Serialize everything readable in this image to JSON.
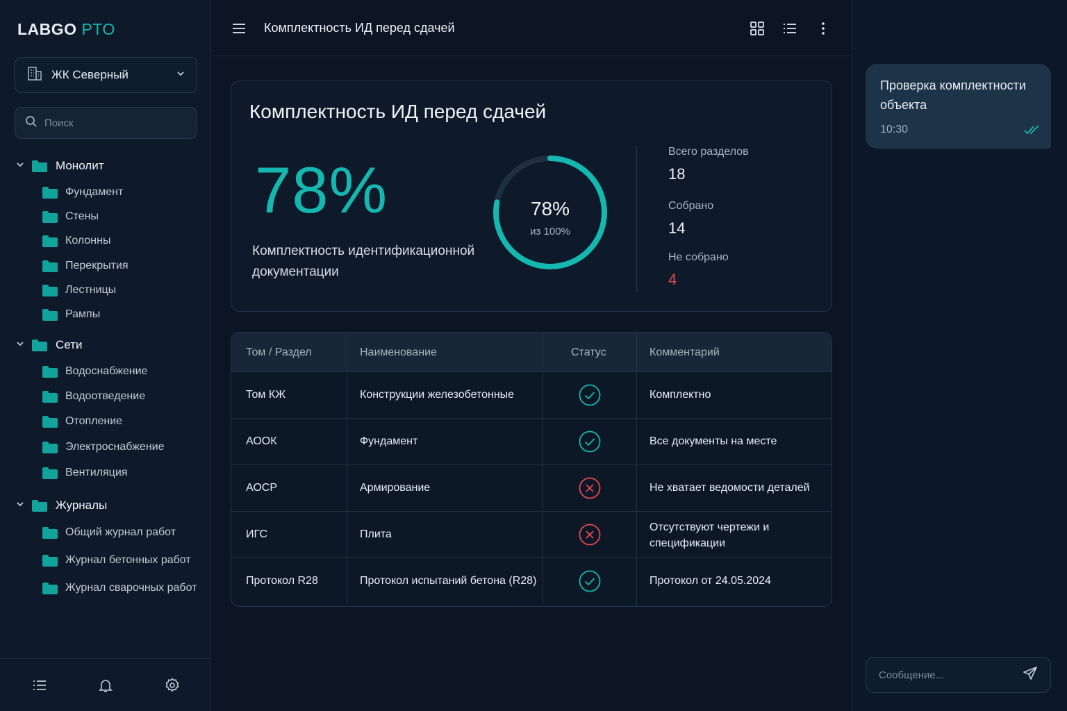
{
  "app": {
    "logo_main": "LABGO",
    "logo_accent": "PTO",
    "accent_color": "#14b8b0",
    "error_color": "#e5484d"
  },
  "sidebar": {
    "project": "ЖК Северный",
    "search_placeholder": "Поиск",
    "groups": [
      {
        "label": "Монолит",
        "items": [
          "Фундамент",
          "Стены",
          "Колонны",
          "Перекрытия",
          "Лестницы",
          "Рампы"
        ]
      },
      {
        "label": "Сети",
        "items": [
          "Водоснабжение",
          "Водоотведение",
          "Отопление",
          "Электроснабжение",
          "Вентиляция"
        ]
      },
      {
        "label": "Журналы",
        "items": [
          "Общий журнал работ",
          "Журнал бетонных работ",
          "Журнал сварочных работ"
        ]
      }
    ],
    "bottom_icons": [
      "list-icon",
      "bell-icon",
      "gear-icon"
    ]
  },
  "header": {
    "title": "Комплектность ИД перед сдачей",
    "icons": [
      "menu-icon",
      "grid-view-icon",
      "list-view-icon",
      "more-icon"
    ]
  },
  "kpi": {
    "title": "Комплектность ИД перед сдачей",
    "big_percent": "78%",
    "description": "Комплектность идентификационной документации",
    "progress_fraction": 0.78,
    "ring_value": "78%",
    "ring_sub": "из 100%",
    "stats": [
      {
        "label": "Всего разделов",
        "value": "18"
      },
      {
        "label": "Собрано",
        "value": "14"
      },
      {
        "label": "Не собрано",
        "value": "4"
      }
    ]
  },
  "table": {
    "headers": [
      "Том / Раздел",
      "Наименование",
      "Статус",
      "Комментарий"
    ],
    "rows": [
      {
        "section": "Том КЖ",
        "name": "Конструкции железобетонные",
        "status": "ok",
        "comment": "Комплектно"
      },
      {
        "section": "АООК",
        "name": "Фундамент",
        "status": "ok",
        "comment": "Все документы на месте"
      },
      {
        "section": "АОСР",
        "name": "Армирование",
        "status": "error",
        "comment": "Не хватает ведомости деталей"
      },
      {
        "section": "ИГС",
        "name": "Плита",
        "status": "error",
        "comment": "Отсутствуют чертежи и спецификации"
      },
      {
        "section": "Протокол R28",
        "name": "Протокол испытаний бетона (R28)",
        "status": "ok",
        "comment": "Протокол от 24.05.2024"
      }
    ]
  },
  "chat": {
    "message": "Проверка комплектности объекта",
    "time": "10:30",
    "input_placeholder": "Сообщение..."
  }
}
